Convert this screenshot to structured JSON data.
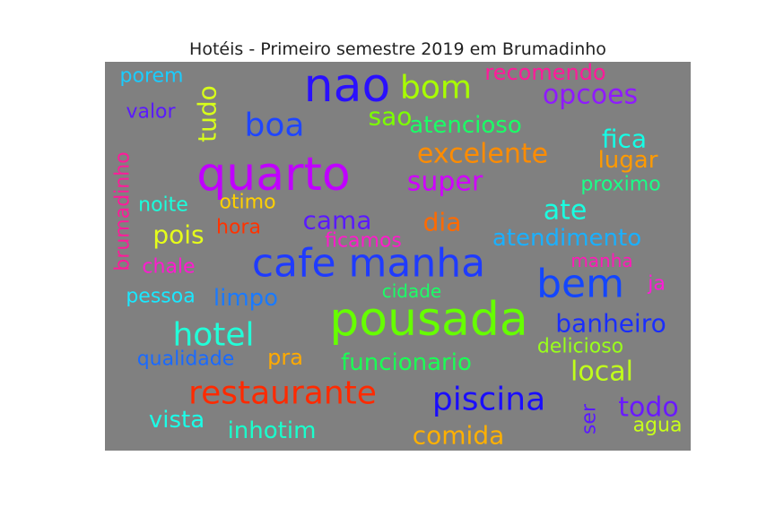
{
  "chart_data": {
    "type": "wordcloud",
    "title": "Hotéis - Primeiro semestre 2019 em Brumadinho",
    "background_color": "#808080",
    "words": [
      {
        "text": "pousada",
        "color": "#66ff00"
      },
      {
        "text": "cafe manha",
        "color": "#1f3bff"
      },
      {
        "text": "quarto",
        "color": "#c000ff"
      },
      {
        "text": "nao",
        "color": "#2a10ff"
      },
      {
        "text": "bem",
        "color": "#1346ff"
      },
      {
        "text": "restaurante",
        "color": "#ff2a00"
      },
      {
        "text": "hotel",
        "color": "#22ffd8"
      },
      {
        "text": "piscina",
        "color": "#1a0dff"
      },
      {
        "text": "boa",
        "color": "#1f46ff"
      },
      {
        "text": "bom",
        "color": "#a8ff00"
      },
      {
        "text": "excelente",
        "color": "#ff8c00"
      },
      {
        "text": "super",
        "color": "#d000ff"
      },
      {
        "text": "opcoes",
        "color": "#8f1aff"
      },
      {
        "text": "tudo",
        "color": "#d8ff1a"
      },
      {
        "text": "fica",
        "color": "#15ffe6"
      },
      {
        "text": "banheiro",
        "color": "#1a2eff"
      },
      {
        "text": "atendimento",
        "color": "#1ab0ff"
      },
      {
        "text": "cama",
        "color": "#5a1aff"
      },
      {
        "text": "todo",
        "color": "#6a1aff"
      },
      {
        "text": "local",
        "color": "#c0ff1a"
      },
      {
        "text": "ate",
        "color": "#1affe0"
      },
      {
        "text": "atencioso",
        "color": "#1aff66"
      },
      {
        "text": "limpo",
        "color": "#1a7aff"
      },
      {
        "text": "pois",
        "color": "#e6ff1a"
      },
      {
        "text": "dia",
        "color": "#ff6a00"
      },
      {
        "text": "sao",
        "color": "#7cff00"
      },
      {
        "text": "lugar",
        "color": "#ff9a00"
      },
      {
        "text": "comida",
        "color": "#ffb000"
      },
      {
        "text": "inhotim",
        "color": "#1affcc"
      },
      {
        "text": "funcionario",
        "color": "#1aff55"
      },
      {
        "text": "recomendo",
        "color": "#ff1a9a"
      },
      {
        "text": "vista",
        "color": "#1affe8"
      },
      {
        "text": "brumadinho",
        "color": "#ff1a9a"
      },
      {
        "text": "proximo",
        "color": "#1aff88"
      },
      {
        "text": "delicioso",
        "color": "#9aff1a"
      },
      {
        "text": "agua",
        "color": "#c8ff1a"
      },
      {
        "text": "porem",
        "color": "#1accff"
      },
      {
        "text": "valor",
        "color": "#5a1aff"
      },
      {
        "text": "otimo",
        "color": "#ffd000"
      },
      {
        "text": "noite",
        "color": "#1affdc"
      },
      {
        "text": "hora",
        "color": "#ff3300"
      },
      {
        "text": "ficamos",
        "color": "#ff1acc"
      },
      {
        "text": "chale",
        "color": "#ff1ad0"
      },
      {
        "text": "pessoa",
        "color": "#1ae8ff"
      },
      {
        "text": "cidade",
        "color": "#1aff66"
      },
      {
        "text": "manha",
        "color": "#ff1ab8"
      },
      {
        "text": "ja",
        "color": "#ff1ad8"
      },
      {
        "text": "pra",
        "color": "#ffaa00"
      },
      {
        "text": "qualidade",
        "color": "#1a6aff"
      },
      {
        "text": "ser",
        "color": "#5a1aff"
      }
    ]
  }
}
